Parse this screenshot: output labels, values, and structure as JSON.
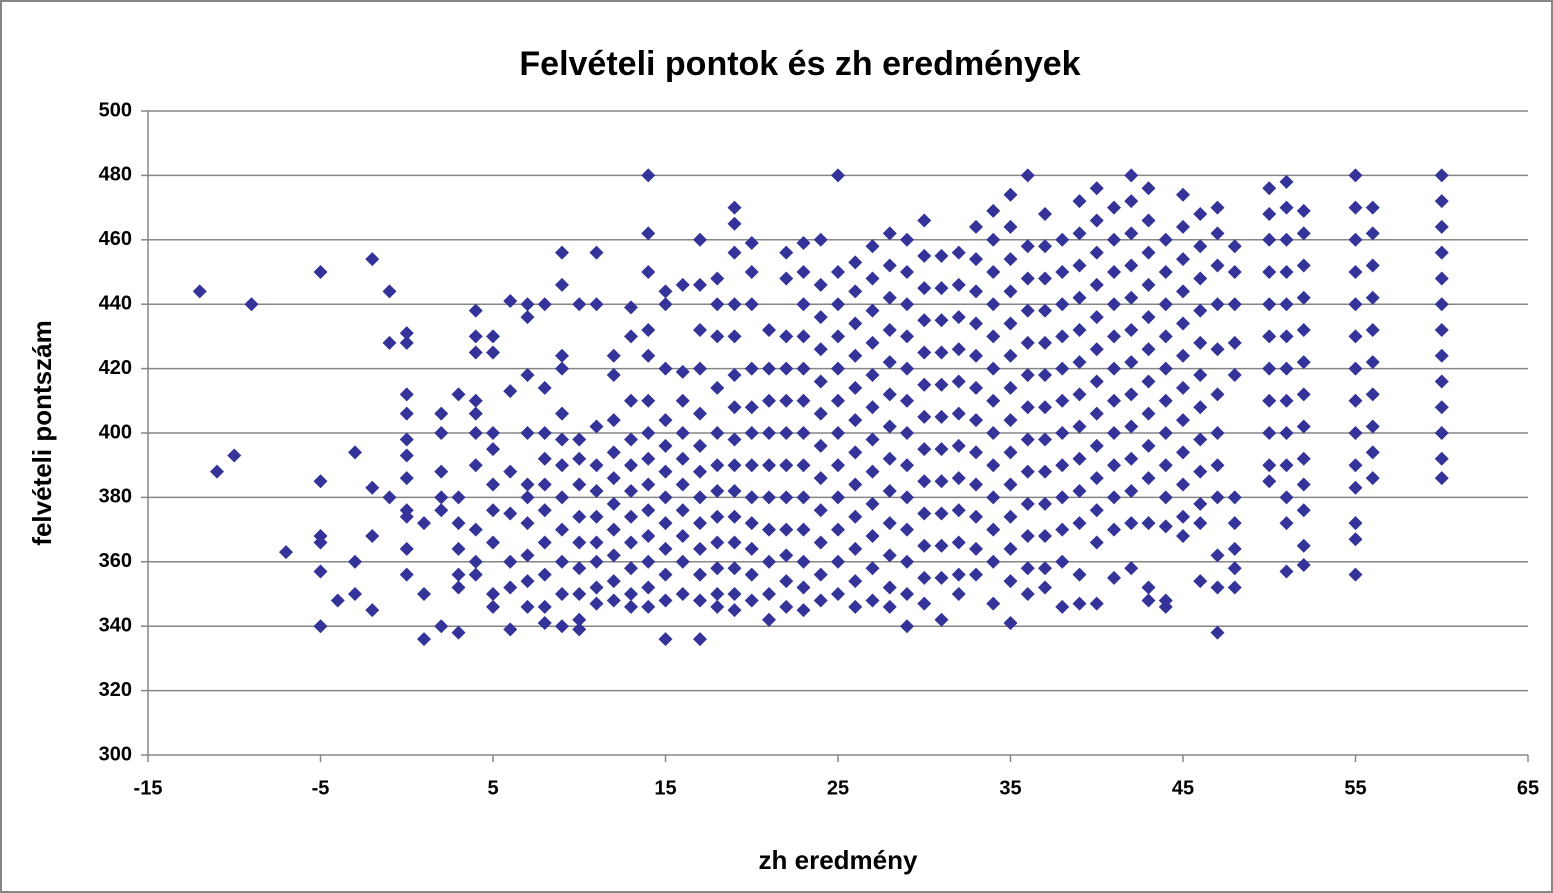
{
  "chart_data": {
    "type": "scatter",
    "title": "Felvételi pontok és zh eredmények",
    "x_label": "zh eredmény",
    "y_label": "felvételi pontszám",
    "color": "#333399",
    "grid": true,
    "xlim": [
      -15,
      65
    ],
    "xticks": [
      -15,
      -5,
      5,
      15,
      25,
      35,
      45,
      55,
      65
    ],
    "ylim": [
      300,
      500
    ],
    "yticks": [
      300,
      320,
      340,
      360,
      380,
      400,
      420,
      440,
      460,
      480,
      500
    ],
    "x": [
      -12,
      -11,
      -10,
      -9,
      -7,
      -5,
      -5,
      -5,
      -5,
      -5,
      -5,
      -4,
      -3,
      -3,
      -3,
      -2,
      -2,
      -2,
      -2,
      -1,
      -1,
      -1,
      0,
      0,
      0,
      0,
      0,
      0,
      0,
      0,
      0,
      0,
      0,
      1,
      1,
      1,
      2,
      2,
      2,
      2,
      2,
      2,
      3,
      3,
      3,
      3,
      3,
      3,
      3,
      4,
      4,
      4,
      4,
      4,
      4,
      4,
      4,
      4,
      4,
      5,
      5,
      5,
      5,
      5,
      5,
      5,
      5,
      5,
      6,
      6,
      6,
      6,
      6,
      6,
      6,
      7,
      7,
      7,
      7,
      7,
      7,
      7,
      7,
      7,
      7,
      8,
      8,
      8,
      8,
      8,
      8,
      8,
      8,
      8,
      8,
      9,
      9,
      9,
      9,
      9,
      9,
      9,
      9,
      9,
      9,
      9,
      9,
      10,
      10,
      10,
      10,
      10,
      10,
      10,
      10,
      10,
      10,
      11,
      11,
      11,
      11,
      11,
      11,
      11,
      11,
      11,
      11,
      12,
      12,
      12,
      12,
      12,
      12,
      12,
      12,
      12,
      12,
      13,
      13,
      13,
      13,
      13,
      13,
      13,
      13,
      13,
      13,
      13,
      14,
      14,
      14,
      14,
      14,
      14,
      14,
      14,
      14,
      14,
      14,
      14,
      14,
      14,
      15,
      15,
      15,
      15,
      15,
      15,
      15,
      15,
      15,
      15,
      15,
      15,
      16,
      16,
      16,
      16,
      16,
      16,
      16,
      16,
      16,
      16,
      17,
      17,
      17,
      17,
      17,
      17,
      17,
      17,
      17,
      17,
      17,
      17,
      17,
      18,
      18,
      18,
      18,
      18,
      18,
      18,
      18,
      18,
      18,
      18,
      18,
      19,
      19,
      19,
      19,
      19,
      19,
      19,
      19,
      19,
      19,
      19,
      19,
      19,
      19,
      19,
      20,
      20,
      20,
      20,
      20,
      20,
      20,
      20,
      20,
      20,
      20,
      20,
      21,
      21,
      21,
      21,
      21,
      21,
      21,
      21,
      21,
      21,
      22,
      22,
      22,
      22,
      22,
      22,
      22,
      22,
      22,
      22,
      22,
      22,
      23,
      23,
      23,
      23,
      23,
      23,
      23,
      23,
      23,
      23,
      23,
      23,
      23,
      24,
      24,
      24,
      24,
      24,
      24,
      24,
      24,
      24,
      24,
      24,
      24,
      25,
      25,
      25,
      25,
      25,
      25,
      25,
      25,
      25,
      25,
      25,
      25,
      26,
      26,
      26,
      26,
      26,
      26,
      26,
      26,
      26,
      26,
      26,
      26,
      27,
      27,
      27,
      27,
      27,
      27,
      27,
      27,
      27,
      27,
      27,
      27,
      28,
      28,
      28,
      28,
      28,
      28,
      28,
      28,
      28,
      28,
      28,
      28,
      28,
      29,
      29,
      29,
      29,
      29,
      29,
      29,
      29,
      29,
      29,
      29,
      29,
      29,
      30,
      30,
      30,
      30,
      30,
      30,
      30,
      30,
      30,
      30,
      30,
      30,
      30,
      31,
      31,
      31,
      31,
      31,
      31,
      31,
      31,
      31,
      31,
      31,
      31,
      32,
      32,
      32,
      32,
      32,
      32,
      32,
      32,
      32,
      32,
      32,
      32,
      33,
      33,
      33,
      33,
      33,
      33,
      33,
      33,
      33,
      33,
      33,
      33,
      34,
      34,
      34,
      34,
      34,
      34,
      34,
      34,
      34,
      34,
      34,
      34,
      34,
      35,
      35,
      35,
      35,
      35,
      35,
      35,
      35,
      35,
      35,
      35,
      35,
      35,
      35,
      36,
      36,
      36,
      36,
      36,
      36,
      36,
      36,
      36,
      36,
      36,
      36,
      36,
      37,
      37,
      37,
      37,
      37,
      37,
      37,
      37,
      37,
      37,
      37,
      37,
      37,
      38,
      38,
      38,
      38,
      38,
      38,
      38,
      38,
      38,
      38,
      38,
      38,
      39,
      39,
      39,
      39,
      39,
      39,
      39,
      39,
      39,
      39,
      39,
      39,
      39,
      40,
      40,
      40,
      40,
      40,
      40,
      40,
      40,
      40,
      40,
      40,
      40,
      40,
      41,
      41,
      41,
      41,
      41,
      41,
      41,
      41,
      41,
      41,
      41,
      41,
      42,
      42,
      42,
      42,
      42,
      42,
      42,
      42,
      42,
      42,
      42,
      42,
      42,
      43,
      43,
      43,
      43,
      43,
      43,
      43,
      43,
      43,
      43,
      43,
      43,
      43,
      44,
      44,
      44,
      44,
      44,
      44,
      44,
      44,
      44,
      44,
      44,
      44,
      45,
      45,
      45,
      45,
      45,
      45,
      45,
      45,
      45,
      45,
      45,
      45,
      46,
      46,
      46,
      46,
      46,
      46,
      46,
      46,
      46,
      46,
      46,
      46,
      47,
      47,
      47,
      47,
      47,
      47,
      47,
      47,
      47,
      47,
      47,
      47,
      48,
      48,
      48,
      48,
      48,
      48,
      48,
      48,
      48,
      48,
      50,
      50,
      50,
      50,
      50,
      50,
      50,
      50,
      50,
      50,
      50,
      51,
      51,
      51,
      51,
      51,
      51,
      51,
      51,
      51,
      51,
      51,
      51,
      51,
      52,
      52,
      52,
      52,
      52,
      52,
      52,
      52,
      52,
      52,
      52,
      52,
      52,
      55,
      55,
      55,
      55,
      55,
      55,
      55,
      55,
      55,
      55,
      55,
      55,
      55,
      55,
      56,
      56,
      56,
      56,
      56,
      56,
      56,
      56,
      56,
      56,
      60,
      60,
      60,
      60,
      60,
      60,
      60,
      60,
      60,
      60,
      60,
      60,
      60
    ],
    "values": [
      444,
      388,
      393,
      440,
      363,
      450,
      385,
      368,
      366,
      357,
      340,
      348,
      394,
      360,
      350,
      454,
      383,
      368,
      345,
      444,
      428,
      380,
      431,
      428,
      412,
      406,
      398,
      393,
      386,
      376,
      374,
      364,
      356,
      372,
      350,
      336,
      406,
      400,
      388,
      380,
      376,
      340,
      412,
      380,
      372,
      364,
      356,
      352,
      338,
      438,
      430,
      425,
      410,
      406,
      400,
      390,
      370,
      360,
      356,
      430,
      425,
      400,
      395,
      384,
      376,
      366,
      350,
      346,
      441,
      413,
      388,
      375,
      360,
      352,
      339,
      440,
      436,
      418,
      400,
      384,
      380,
      372,
      362,
      354,
      346,
      440,
      414,
      400,
      392,
      384,
      376,
      366,
      356,
      346,
      341,
      456,
      446,
      424,
      420,
      406,
      398,
      390,
      380,
      370,
      360,
      350,
      340,
      440,
      398,
      392,
      384,
      374,
      366,
      358,
      350,
      342,
      339,
      456,
      440,
      402,
      390,
      382,
      374,
      366,
      360,
      352,
      347,
      424,
      418,
      404,
      394,
      386,
      378,
      370,
      362,
      354,
      348,
      439,
      430,
      410,
      398,
      390,
      382,
      374,
      366,
      358,
      350,
      346,
      480,
      462,
      450,
      432,
      424,
      410,
      400,
      392,
      384,
      376,
      368,
      360,
      352,
      346,
      444,
      440,
      420,
      404,
      396,
      388,
      380,
      372,
      364,
      356,
      348,
      336,
      446,
      419,
      410,
      400,
      392,
      384,
      376,
      368,
      360,
      350,
      460,
      446,
      432,
      420,
      406,
      396,
      388,
      380,
      372,
      364,
      356,
      348,
      336,
      448,
      440,
      430,
      414,
      400,
      390,
      382,
      374,
      366,
      358,
      350,
      346,
      470,
      465,
      456,
      440,
      430,
      418,
      408,
      398,
      390,
      382,
      374,
      366,
      358,
      350,
      345,
      459,
      450,
      440,
      420,
      408,
      400,
      390,
      380,
      372,
      364,
      356,
      348,
      432,
      420,
      410,
      400,
      390,
      380,
      370,
      360,
      350,
      342,
      456,
      448,
      430,
      420,
      410,
      400,
      390,
      380,
      370,
      362,
      354,
      346,
      459,
      450,
      440,
      430,
      420,
      410,
      400,
      390,
      380,
      370,
      360,
      352,
      345,
      460,
      446,
      436,
      426,
      416,
      406,
      396,
      386,
      376,
      366,
      356,
      348,
      480,
      450,
      440,
      430,
      420,
      410,
      400,
      390,
      380,
      370,
      360,
      350,
      453,
      444,
      434,
      424,
      414,
      404,
      394,
      384,
      374,
      364,
      354,
      346,
      458,
      448,
      438,
      428,
      418,
      408,
      398,
      388,
      378,
      368,
      358,
      348,
      462,
      452,
      442,
      432,
      422,
      412,
      402,
      392,
      382,
      372,
      362,
      352,
      346,
      460,
      450,
      440,
      430,
      420,
      410,
      400,
      390,
      380,
      370,
      360,
      350,
      340,
      466,
      455,
      445,
      435,
      425,
      415,
      405,
      395,
      385,
      375,
      365,
      355,
      347,
      455,
      445,
      435,
      425,
      415,
      405,
      395,
      385,
      375,
      365,
      355,
      342,
      456,
      446,
      436,
      426,
      416,
      406,
      396,
      386,
      376,
      366,
      356,
      350,
      464,
      454,
      444,
      434,
      424,
      414,
      404,
      394,
      384,
      374,
      364,
      356,
      469,
      460,
      450,
      440,
      430,
      420,
      410,
      400,
      390,
      380,
      370,
      360,
      347,
      474,
      464,
      454,
      444,
      434,
      424,
      414,
      404,
      394,
      384,
      374,
      364,
      354,
      341,
      480,
      458,
      448,
      438,
      428,
      418,
      408,
      398,
      388,
      378,
      368,
      358,
      350,
      468,
      458,
      448,
      438,
      428,
      418,
      408,
      398,
      388,
      378,
      368,
      358,
      352,
      460,
      450,
      440,
      430,
      420,
      410,
      400,
      390,
      380,
      370,
      360,
      346,
      472,
      462,
      452,
      442,
      432,
      422,
      412,
      402,
      392,
      382,
      372,
      356,
      347,
      476,
      466,
      456,
      446,
      436,
      426,
      416,
      406,
      396,
      386,
      376,
      366,
      347,
      470,
      460,
      450,
      440,
      430,
      420,
      410,
      400,
      390,
      380,
      370,
      355,
      480,
      472,
      462,
      452,
      442,
      432,
      422,
      412,
      402,
      392,
      382,
      372,
      358,
      476,
      466,
      456,
      446,
      436,
      426,
      416,
      406,
      396,
      386,
      372,
      352,
      348,
      460,
      450,
      440,
      430,
      420,
      410,
      400,
      390,
      380,
      371,
      348,
      346,
      474,
      464,
      454,
      444,
      434,
      424,
      414,
      404,
      394,
      384,
      374,
      368,
      468,
      458,
      448,
      438,
      428,
      418,
      408,
      398,
      388,
      378,
      372,
      354,
      470,
      462,
      452,
      440,
      426,
      412,
      400,
      390,
      380,
      362,
      352,
      338,
      458,
      450,
      440,
      428,
      418,
      380,
      372,
      364,
      358,
      352,
      476,
      468,
      460,
      450,
      440,
      430,
      420,
      410,
      400,
      390,
      385,
      478,
      470,
      460,
      450,
      440,
      430,
      420,
      410,
      400,
      390,
      380,
      372,
      357,
      469,
      462,
      452,
      442,
      432,
      422,
      412,
      402,
      392,
      384,
      376,
      365,
      359,
      480,
      470,
      460,
      450,
      440,
      430,
      420,
      410,
      400,
      390,
      383,
      372,
      367,
      356,
      470,
      462,
      452,
      442,
      432,
      422,
      412,
      402,
      394,
      386,
      480,
      472,
      464,
      456,
      448,
      440,
      432,
      424,
      416,
      408,
      400,
      392,
      386
    ]
  }
}
